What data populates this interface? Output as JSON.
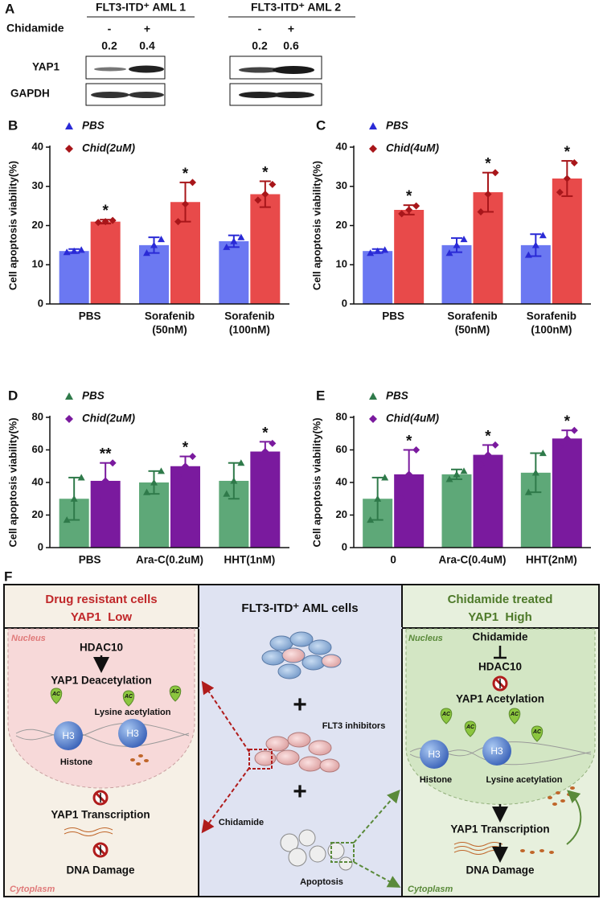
{
  "panel_a": {
    "label": "A",
    "row_label": "Chidamide",
    "blot_labels": [
      "YAP1",
      "GAPDH"
    ],
    "groups": [
      {
        "title": "FLT3-ITD⁺ AML 1",
        "treatments": [
          "-",
          "+"
        ],
        "ratios": [
          0.2,
          0.4
        ]
      },
      {
        "title": "FLT3-ITD⁺ AML 2",
        "treatments": [
          "-",
          "+"
        ],
        "ratios": [
          0.2,
          0.6
        ]
      }
    ]
  },
  "chart_data": [
    {
      "type": "bar",
      "panel_label": "B",
      "y_label": "Cell apoptosis viability(%)",
      "categories": [
        [
          "PBS"
        ],
        [
          "Sorafenib",
          "(50nM)"
        ],
        [
          "Sorafenib",
          "(100nM)"
        ]
      ],
      "ylim": [
        0,
        40
      ],
      "yticks": [
        0,
        10,
        20,
        30,
        40
      ],
      "legend": "top-left",
      "series": [
        {
          "name": "PBS",
          "color": "#6b78f2",
          "marker_color": "#2a2ad6",
          "marker": "triangle",
          "values": [
            13.5,
            15,
            16
          ],
          "errors": [
            0.5,
            2,
            1.5
          ],
          "points": [
            [
              13.2,
              13.5,
              13.8
            ],
            [
              13,
              15,
              16.5
            ],
            [
              14.5,
              16,
              17
            ]
          ]
        },
        {
          "name": "Chid(2uM)",
          "color": "#e84a4a",
          "marker_color": "#a8161a",
          "marker": "diamond",
          "values": [
            21,
            26,
            28
          ],
          "errors": [
            0.5,
            5,
            3.3
          ],
          "points": [
            [
              20.8,
              21,
              21.3
            ],
            [
              21,
              25.5,
              31
            ],
            [
              26.5,
              28,
              30.5
            ]
          ],
          "annotations": [
            "*",
            "*",
            "*"
          ]
        }
      ]
    },
    {
      "type": "bar",
      "panel_label": "C",
      "y_label": "Cell apoptosis viability(%)",
      "categories": [
        [
          "PBS"
        ],
        [
          "Sorafenib",
          "(50nM)"
        ],
        [
          "Sorafenib",
          "(100nM)"
        ]
      ],
      "ylim": [
        0,
        40
      ],
      "yticks": [
        0,
        10,
        20,
        30,
        40
      ],
      "legend": "top-left",
      "series": [
        {
          "name": "PBS",
          "color": "#6b78f2",
          "marker_color": "#2a2ad6",
          "marker": "triangle",
          "values": [
            13.5,
            15,
            15
          ],
          "errors": [
            0.5,
            1.8,
            2.8
          ],
          "points": [
            [
              13,
              13.5,
              13.8
            ],
            [
              13,
              15,
              16.5
            ],
            [
              12.5,
              15,
              17.5
            ]
          ]
        },
        {
          "name": "Chid(4uM)",
          "color": "#e84a4a",
          "marker_color": "#a8161a",
          "marker": "diamond",
          "values": [
            24,
            28.5,
            32
          ],
          "errors": [
            1.2,
            5,
            4.5
          ],
          "points": [
            [
              23,
              24,
              25
            ],
            [
              23.5,
              28,
              33.5
            ],
            [
              28.5,
              32,
              36
            ]
          ],
          "annotations": [
            "*",
            "*",
            "*"
          ]
        }
      ]
    },
    {
      "type": "bar",
      "panel_label": "D",
      "y_label": "Cell apoptosis viability(%)",
      "categories": [
        [
          "PBS"
        ],
        [
          "Ara-C(0.2uM)"
        ],
        [
          "HHT(1nM)"
        ]
      ],
      "ylim": [
        0,
        80
      ],
      "yticks": [
        0,
        20,
        40,
        60,
        80
      ],
      "legend": "top-left",
      "series": [
        {
          "name": "PBS",
          "color": "#5ea878",
          "marker_color": "#2f7a4a",
          "marker": "triangle",
          "values": [
            30,
            40,
            41
          ],
          "errors": [
            13,
            7,
            11
          ],
          "points": [
            [
              17,
              30,
              43
            ],
            [
              34,
              40,
              47
            ],
            [
              33,
              41,
              52
            ]
          ]
        },
        {
          "name": "Chid(2uM)",
          "color": "#7a1a9e",
          "marker_color": "#7a1a9e",
          "marker": "diamond",
          "values": [
            41,
            50,
            59
          ],
          "errors": [
            11,
            6,
            6
          ],
          "points": [
            [
              30,
              41,
              52
            ],
            [
              44,
              50,
              56
            ],
            [
              53,
              59,
              64
            ]
          ],
          "annotations": [
            "**",
            "*",
            "*"
          ]
        }
      ]
    },
    {
      "type": "bar",
      "panel_label": "E",
      "y_label": "Cell apoptosis viability(%)",
      "categories": [
        [
          "0"
        ],
        [
          "Ara-C(0.4uM)"
        ],
        [
          "HHT(2nM)"
        ]
      ],
      "ylim": [
        0,
        80
      ],
      "yticks": [
        0,
        20,
        40,
        60,
        80
      ],
      "legend": "top-left",
      "series": [
        {
          "name": "PBS",
          "color": "#5ea878",
          "marker_color": "#2f7a4a",
          "marker": "triangle",
          "values": [
            30,
            45,
            46
          ],
          "errors": [
            13,
            3,
            12
          ],
          "points": [
            [
              17,
              30,
              43
            ],
            [
              42,
              45,
              47
            ],
            [
              34,
              46,
              58
            ]
          ]
        },
        {
          "name": "Chid(4uM)",
          "color": "#7a1a9e",
          "marker_color": "#7a1a9e",
          "marker": "diamond",
          "values": [
            45,
            57,
            67
          ],
          "errors": [
            15,
            6,
            5
          ],
          "points": [
            [
              30,
              45,
              60
            ],
            [
              51,
              57,
              63
            ],
            [
              62,
              67,
              72
            ]
          ],
          "annotations": [
            "*",
            "*",
            "*"
          ]
        }
      ]
    }
  ],
  "panel_f": {
    "label": "F",
    "left": {
      "header": [
        "Drug resistant cells",
        "YAP1  Low"
      ],
      "nucleus": "Nucleus",
      "steps": [
        "HDAC10",
        "YAP1 Deacetylation"
      ],
      "ac_labels": [
        "AC",
        "AC",
        "AC"
      ],
      "lysine": "Lysine acetylation",
      "histones": [
        "H3",
        "H3"
      ],
      "histone": "Histone",
      "transcription": "YAP1 Transcription",
      "damage": "DNA Damage",
      "cytoplasm": "Cytoplasm"
    },
    "middle": {
      "title": "FLT3-ITD⁺ AML cells",
      "plus": [
        "+",
        "+"
      ],
      "inhibitors": "FLT3 inhibitors",
      "chidamide": "Chidamide",
      "apoptosis": "Apoptosis"
    },
    "right": {
      "header": [
        "Chidamide treated",
        "YAP1  High"
      ],
      "nucleus": "Nucleus",
      "steps": [
        "Chidamide",
        "HDAC10",
        "YAP1 Acetylation"
      ],
      "ac_labels": [
        "AC",
        "AC",
        "AC",
        "AC"
      ],
      "histones": [
        "H3",
        "H3"
      ],
      "histone": "Histone",
      "lysine": "Lysine acetylation",
      "transcription": "YAP1 Transcription",
      "damage": "DNA Damage",
      "cytoplasm": "Cytoplasm"
    }
  }
}
